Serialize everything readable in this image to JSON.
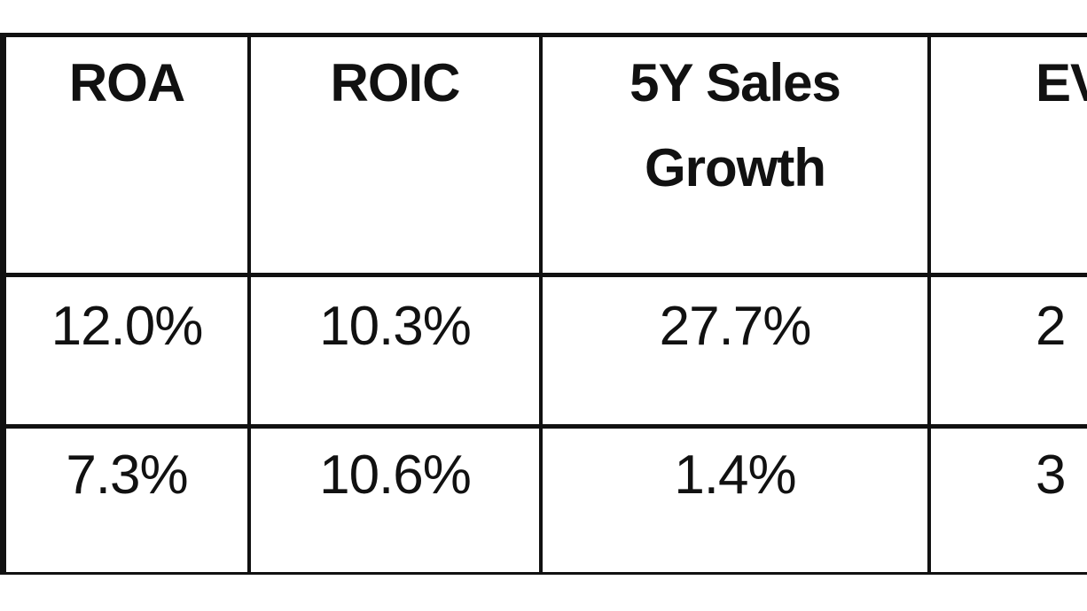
{
  "table": {
    "headers": [
      "ROA",
      "ROIC",
      "5Y Sales\nGrowth",
      "EV"
    ],
    "header_lines": {
      "col3_line1": "5Y Sales",
      "col3_line2": "Growth"
    },
    "rows": [
      [
        "12.0%",
        "10.3%",
        "27.7%",
        "2"
      ],
      [
        "7.3%",
        "10.6%",
        "1.4%",
        "3"
      ]
    ]
  }
}
